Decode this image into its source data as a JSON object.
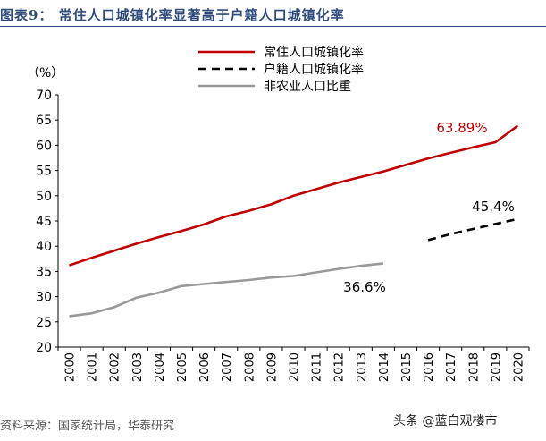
{
  "header": {
    "title": "图表9： 常住人口城镇化率显著高于户籍人口城镇化率"
  },
  "footer": {
    "source": "资料来源：国家统计局，华泰研究"
  },
  "watermark": {
    "text": "头条 @蓝白观楼市"
  },
  "chart_data": {
    "type": "line",
    "title": "",
    "ylabel": "（%）",
    "xlabel": "",
    "ylim": [
      20,
      70
    ],
    "yticks": [
      20,
      25,
      30,
      35,
      40,
      45,
      50,
      55,
      60,
      65,
      70
    ],
    "x": [
      "2000",
      "2001",
      "2002",
      "2003",
      "2004",
      "2005",
      "2006",
      "2007",
      "2008",
      "2009",
      "2010",
      "2011",
      "2012",
      "2013",
      "2014",
      "2015",
      "2016",
      "2017",
      "2018",
      "2019",
      "2020"
    ],
    "legend_position": "top-center",
    "grid": false,
    "series": [
      {
        "name": "常住人口城镇化率",
        "color": "#c00000",
        "dash": "solid",
        "x": [
          "2000",
          "2001",
          "2002",
          "2003",
          "2004",
          "2005",
          "2006",
          "2007",
          "2008",
          "2009",
          "2010",
          "2011",
          "2012",
          "2013",
          "2014",
          "2015",
          "2016",
          "2017",
          "2018",
          "2019",
          "2020"
        ],
        "values": [
          36.2,
          37.7,
          39.1,
          40.5,
          41.8,
          43.0,
          44.3,
          45.9,
          47.0,
          48.3,
          50.0,
          51.3,
          52.6,
          53.7,
          54.8,
          56.1,
          57.4,
          58.5,
          59.6,
          60.6,
          63.89
        ]
      },
      {
        "name": "户籍人口城镇化率",
        "color": "#000000",
        "dash": "dashed",
        "x": [
          "2016",
          "2017",
          "2018",
          "2019",
          "2020"
        ],
        "values": [
          41.2,
          42.4,
          43.4,
          44.4,
          45.4
        ]
      },
      {
        "name": "非农业人口比重",
        "color": "#999999",
        "dash": "solid",
        "x": [
          "2000",
          "2001",
          "2002",
          "2003",
          "2004",
          "2005",
          "2006",
          "2007",
          "2008",
          "2009",
          "2010",
          "2011",
          "2012",
          "2013",
          "2014"
        ],
        "values": [
          26.1,
          26.7,
          27.9,
          29.8,
          30.8,
          32.1,
          32.5,
          32.9,
          33.3,
          33.8,
          34.1,
          34.8,
          35.5,
          36.1,
          36.6
        ]
      }
    ],
    "annotations": [
      {
        "text": "63.89%",
        "x": "2020",
        "y": 63.89,
        "color": "#c00000"
      },
      {
        "text": "45.4%",
        "x": "2020",
        "y": 45.4,
        "color": "#000000"
      },
      {
        "text": "36.6%",
        "x": "2014",
        "y": 36.6,
        "color": "#000000"
      }
    ]
  }
}
